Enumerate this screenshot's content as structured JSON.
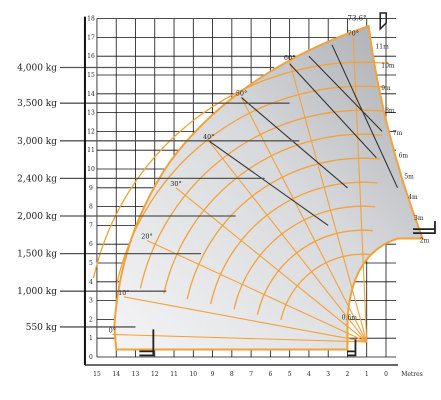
{
  "chart_data": {
    "type": "load_chart",
    "x_unit": "Metres",
    "x_ticks": [
      "15",
      "14",
      "13",
      "12",
      "11",
      "10",
      "9",
      "8",
      "7",
      "6",
      "5",
      "4",
      "3",
      "2",
      "1",
      "0"
    ],
    "y_ticks": [
      "0",
      "1",
      "2",
      "3",
      "4",
      "5",
      "6",
      "7",
      "8",
      "9",
      "10",
      "11",
      "12",
      "13",
      "14",
      "15",
      "16",
      "17",
      "18"
    ],
    "max_angle_label": "73.6°",
    "load_zones": [
      {
        "label": "4,000 kg",
        "height_m": 15.4
      },
      {
        "label": "3,500 kg",
        "height_m": 13.5
      },
      {
        "label": "3,000 kg",
        "height_m": 11.5
      },
      {
        "label": "2,400 kg",
        "height_m": 9.5
      },
      {
        "label": "2,000 kg",
        "height_m": 7.5
      },
      {
        "label": "1,500 kg",
        "height_m": 5.5
      },
      {
        "label": "1,000 kg",
        "height_m": 3.5
      },
      {
        "label": "550 kg",
        "height_m": 1.6
      }
    ],
    "boom_angles": [
      {
        "label": "70°",
        "x": 1.7,
        "y": 17.0
      },
      {
        "label": "60°",
        "x": 5.0,
        "y": 15.7
      },
      {
        "label": "50°",
        "x": 7.5,
        "y": 13.8
      },
      {
        "label": "40°",
        "x": 9.2,
        "y": 11.5
      },
      {
        "label": "30°",
        "x": 10.9,
        "y": 9.0
      },
      {
        "label": "20°",
        "x": 12.4,
        "y": 6.2
      },
      {
        "label": "10°",
        "x": 13.6,
        "y": 3.2
      },
      {
        "label": "0°",
        "x": 14.2,
        "y": 1.2
      }
    ],
    "extensions": [
      {
        "label": "11m",
        "x": 0.2,
        "y": 16.4
      },
      {
        "label": "10m",
        "x": -0.1,
        "y": 15.4
      },
      {
        "label": "9m",
        "x": 0.0,
        "y": 14.2
      },
      {
        "label": "8m",
        "x": -0.2,
        "y": 13.0
      },
      {
        "label": "7m",
        "x": -0.6,
        "y": 11.8
      },
      {
        "label": "6m",
        "x": -0.9,
        "y": 10.6
      },
      {
        "label": "5m",
        "x": -1.2,
        "y": 9.5
      },
      {
        "label": "4m",
        "x": -1.4,
        "y": 8.4
      },
      {
        "label": "3m",
        "x": -1.7,
        "y": 7.3
      },
      {
        "label": "2m",
        "x": -2.0,
        "y": 6.1
      },
      {
        "label": "0.6m",
        "x": 1.9,
        "y": 2.0
      }
    ],
    "colors": {
      "envelope": "#f2a23a",
      "fill_light": "#e9e9ec",
      "fill_dark": "#aeafb4",
      "grid": "#111111",
      "boom_line": "#333333"
    }
  }
}
